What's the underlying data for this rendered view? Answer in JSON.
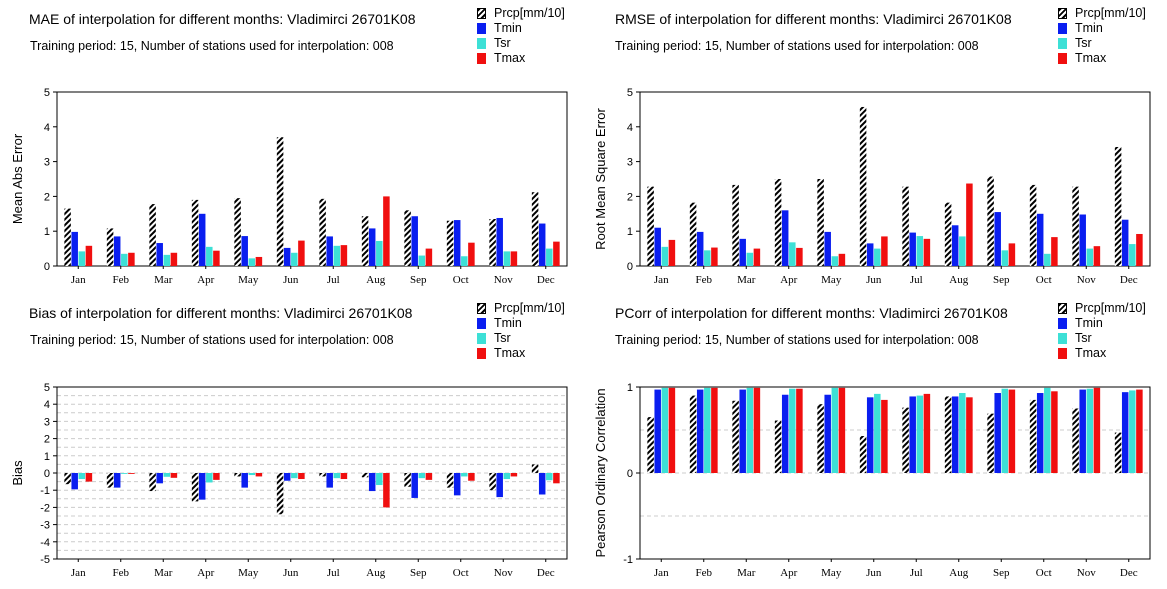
{
  "legend": [
    {
      "name": "Prcp[mm/10]",
      "color": "hatch-black"
    },
    {
      "name": "Tmin",
      "color": "#0a1ef0"
    },
    {
      "name": "Tsr",
      "color": "#3de0d6"
    },
    {
      "name": "Tmax",
      "color": "#f00f0f"
    }
  ],
  "colors": {
    "Prcp[mm/10]": "#000000",
    "Tmin": "#0a1ef0",
    "Tsr": "#3de0d6",
    "Tmax": "#f00f0f"
  },
  "chart_data": [
    {
      "type": "bar",
      "title": "MAE of interpolation for different months: Vladimirci   26701K08",
      "subtitle": "Training period: 15, Number of stations used for interpolation: 008",
      "ylabel": "Mean Abs Error",
      "ylim": [
        0,
        5
      ],
      "yticks": [
        0,
        1,
        2,
        3,
        4,
        5
      ],
      "grid": false,
      "categories": [
        "Jan",
        "Feb",
        "Mar",
        "Apr",
        "May",
        "Jun",
        "Jul",
        "Aug",
        "Sep",
        "Oct",
        "Nov",
        "Dec"
      ],
      "series": [
        {
          "name": "Prcp[mm/10]",
          "values": [
            1.65,
            1.08,
            1.78,
            1.9,
            1.95,
            3.7,
            1.93,
            1.43,
            1.6,
            1.3,
            1.35,
            2.12
          ]
        },
        {
          "name": "Tmin",
          "values": [
            0.98,
            0.85,
            0.66,
            1.5,
            0.86,
            0.52,
            0.85,
            1.08,
            1.43,
            1.32,
            1.38,
            1.22
          ]
        },
        {
          "name": "Tsr",
          "values": [
            0.42,
            0.35,
            0.32,
            0.55,
            0.22,
            0.38,
            0.58,
            0.72,
            0.3,
            0.28,
            0.42,
            0.5
          ]
        },
        {
          "name": "Tmax",
          "values": [
            0.58,
            0.38,
            0.38,
            0.44,
            0.26,
            0.73,
            0.6,
            2.0,
            0.5,
            0.67,
            0.42,
            0.7
          ]
        }
      ]
    },
    {
      "type": "bar",
      "title": "RMSE of interpolation for different months: Vladimirci   26701K08",
      "subtitle": "Training period: 15, Number of stations used for interpolation: 008",
      "ylabel": "Root Mean Square Error",
      "ylim": [
        0,
        5
      ],
      "yticks": [
        0,
        1,
        2,
        3,
        4,
        5
      ],
      "grid": false,
      "categories": [
        "Jan",
        "Feb",
        "Mar",
        "Apr",
        "May",
        "Jun",
        "Jul",
        "Aug",
        "Sep",
        "Oct",
        "Nov",
        "Dec"
      ],
      "series": [
        {
          "name": "Prcp[mm/10]",
          "values": [
            2.28,
            1.82,
            2.33,
            2.5,
            2.5,
            4.57,
            2.28,
            1.82,
            2.57,
            2.33,
            2.28,
            3.42
          ]
        },
        {
          "name": "Tmin",
          "values": [
            1.1,
            0.98,
            0.78,
            1.6,
            0.98,
            0.65,
            0.96,
            1.17,
            1.55,
            1.5,
            1.48,
            1.33
          ]
        },
        {
          "name": "Tsr",
          "values": [
            0.55,
            0.45,
            0.38,
            0.68,
            0.28,
            0.5,
            0.86,
            0.85,
            0.45,
            0.35,
            0.5,
            0.63
          ]
        },
        {
          "name": "Tmax",
          "values": [
            0.75,
            0.53,
            0.5,
            0.52,
            0.35,
            0.85,
            0.78,
            2.37,
            0.65,
            0.83,
            0.57,
            0.92
          ]
        }
      ]
    },
    {
      "type": "bar",
      "title": "Bias of interpolation for different months: Vladimirci   26701K08",
      "subtitle": "Training period: 15, Number of stations used for interpolation: 008",
      "ylabel": "Bias",
      "ylim": [
        -5,
        5
      ],
      "yticks": [
        -5,
        -4,
        -3,
        -2,
        -1,
        0,
        1,
        2,
        3,
        4,
        5
      ],
      "grid": true,
      "categories": [
        "Jan",
        "Feb",
        "Mar",
        "Apr",
        "May",
        "Jun",
        "Jul",
        "Aug",
        "Sep",
        "Oct",
        "Nov",
        "Dec"
      ],
      "series": [
        {
          "name": "Prcp[mm/10]",
          "values": [
            -0.65,
            -0.85,
            -1.05,
            -1.65,
            -0.2,
            -2.4,
            -0.2,
            -0.25,
            -0.8,
            -0.85,
            -1.0,
            0.5
          ]
        },
        {
          "name": "Tmin",
          "values": [
            -0.95,
            -0.85,
            -0.6,
            -1.55,
            -0.85,
            -0.45,
            -0.85,
            -1.05,
            -1.45,
            -1.3,
            -1.4,
            -1.25
          ]
        },
        {
          "name": "Tsr",
          "values": [
            -0.35,
            -0.05,
            -0.22,
            -0.55,
            -0.12,
            -0.3,
            -0.3,
            -0.7,
            -0.3,
            -0.2,
            -0.35,
            -0.42
          ]
        },
        {
          "name": "Tmax",
          "values": [
            -0.5,
            -0.05,
            -0.28,
            -0.4,
            -0.2,
            -0.35,
            -0.35,
            -2.0,
            -0.4,
            -0.45,
            -0.2,
            -0.6
          ]
        }
      ]
    },
    {
      "type": "bar",
      "title": "PCorr of interpolation for different months: Vladimirci   26701K08",
      "subtitle": "Training period: 15, Number of stations used for interpolation: 008",
      "ylabel": "Pearson Ordinary Correlation",
      "ylim": [
        -1,
        1
      ],
      "yticks": [
        -1,
        0,
        1
      ],
      "grid": true,
      "categories": [
        "Jan",
        "Feb",
        "Mar",
        "Apr",
        "May",
        "Jun",
        "Jul",
        "Aug",
        "Sep",
        "Oct",
        "Nov",
        "Dec"
      ],
      "series": [
        {
          "name": "Prcp[mm/10]",
          "values": [
            0.65,
            0.9,
            0.84,
            0.61,
            0.8,
            0.43,
            0.76,
            0.89,
            0.69,
            0.85,
            0.75,
            0.47
          ]
        },
        {
          "name": "Tmin",
          "values": [
            0.97,
            0.97,
            0.97,
            0.91,
            0.91,
            0.88,
            0.89,
            0.89,
            0.93,
            0.93,
            0.97,
            0.94
          ]
        },
        {
          "name": "Tsr",
          "values": [
            0.99,
            0.99,
            0.99,
            0.98,
            0.99,
            0.92,
            0.9,
            0.93,
            0.98,
            0.99,
            0.98,
            0.96
          ]
        },
        {
          "name": "Tmax",
          "values": [
            0.99,
            0.99,
            0.99,
            0.98,
            0.99,
            0.85,
            0.92,
            0.88,
            0.97,
            0.95,
            0.99,
            0.97
          ]
        }
      ]
    }
  ]
}
